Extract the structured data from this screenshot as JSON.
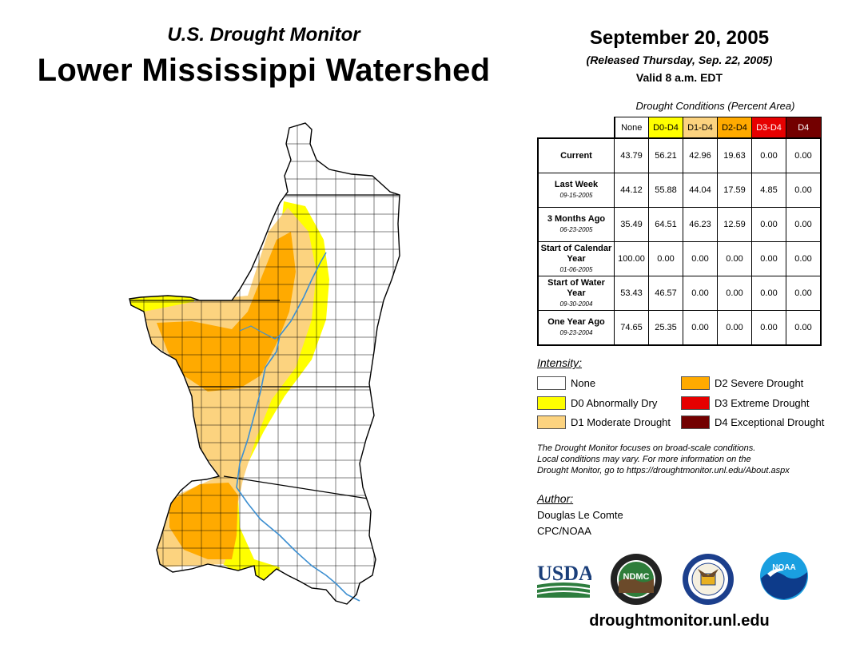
{
  "header": {
    "subtitle": "U.S. Drought Monitor",
    "title": "Lower Mississippi Watershed",
    "date": "September 20, 2005",
    "released": "(Released Thursday, Sep. 22, 2005)",
    "valid": "Valid 8 a.m. EDT"
  },
  "table": {
    "caption": "Drought Conditions (Percent Area)",
    "columns": [
      {
        "label": "None",
        "color": "#ffffff",
        "text_color": "#000000"
      },
      {
        "label": "D0-D4",
        "color": "#ffff00",
        "text_color": "#000000"
      },
      {
        "label": "D1-D4",
        "color": "#fcd37f",
        "text_color": "#000000"
      },
      {
        "label": "D2-D4",
        "color": "#ffaa00",
        "text_color": "#000000"
      },
      {
        "label": "D3-D4",
        "color": "#e60000",
        "text_color": "#ffffff"
      },
      {
        "label": "D4",
        "color": "#730000",
        "text_color": "#ffffff"
      }
    ],
    "rows": [
      {
        "label": "Current",
        "date": "",
        "values": [
          "43.79",
          "56.21",
          "42.96",
          "19.63",
          "0.00",
          "0.00"
        ]
      },
      {
        "label": "Last Week",
        "date": "09-15-2005",
        "values": [
          "44.12",
          "55.88",
          "44.04",
          "17.59",
          "4.85",
          "0.00"
        ]
      },
      {
        "label": "3 Months Ago",
        "date": "06-23-2005",
        "values": [
          "35.49",
          "64.51",
          "46.23",
          "12.59",
          "0.00",
          "0.00"
        ]
      },
      {
        "label": "Start of Calendar Year",
        "date": "01-06-2005",
        "values": [
          "100.00",
          "0.00",
          "0.00",
          "0.00",
          "0.00",
          "0.00"
        ]
      },
      {
        "label": "Start of Water Year",
        "date": "09-30-2004",
        "values": [
          "53.43",
          "46.57",
          "0.00",
          "0.00",
          "0.00",
          "0.00"
        ]
      },
      {
        "label": "One Year Ago",
        "date": "09-23-2004",
        "values": [
          "74.65",
          "25.35",
          "0.00",
          "0.00",
          "0.00",
          "0.00"
        ]
      }
    ]
  },
  "legend": {
    "title": "Intensity:",
    "items": [
      {
        "label": "None",
        "color": "#ffffff"
      },
      {
        "label": "D0 Abnormally Dry",
        "color": "#ffff00"
      },
      {
        "label": "D1 Moderate Drought",
        "color": "#fcd37f"
      },
      {
        "label": "D2 Severe Drought",
        "color": "#ffaa00"
      },
      {
        "label": "D3 Extreme Drought",
        "color": "#e60000"
      },
      {
        "label": "D4 Exceptional Drought",
        "color": "#730000"
      }
    ]
  },
  "note": {
    "line1": "The Drought Monitor focuses on broad-scale conditions.",
    "line2": "Local conditions may vary. For more information on the",
    "line3": "Drought Monitor, go to https://droughtmonitor.unl.edu/About.aspx"
  },
  "author": {
    "label": "Author:",
    "name": "Douglas Le Comte",
    "org": "CPC/NOAA"
  },
  "logos": {
    "usda": "USDA",
    "ndmc": "NDMC",
    "noaa": "NOAA"
  },
  "website": "droughtmonitor.unl.edu",
  "map": {
    "colors": {
      "none": "#ffffff",
      "d0": "#ffff00",
      "d1": "#fcd37f",
      "d2": "#ffaa00",
      "river": "#3d8fd1",
      "border": "#000000"
    }
  }
}
